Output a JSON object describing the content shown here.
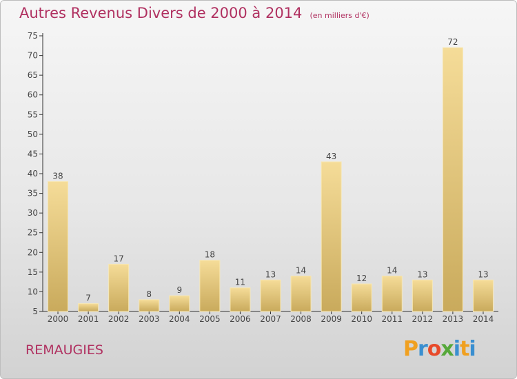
{
  "title": "Autres Revenus Divers de 2000 à 2014",
  "unit_note": "(en milliers d'€)",
  "place_name": "REMAUGIES",
  "logo_text": "Proxiti",
  "colors": {
    "title": "#b03060",
    "bar_light": "#f5dc98",
    "bar_dark": "#c9aa5c",
    "axis": "#333333"
  },
  "chart_data": {
    "type": "bar",
    "title": "Autres Revenus Divers de 2000 à 2014",
    "subtitle": "(en milliers d'€)",
    "categories": [
      "2000",
      "2001",
      "2002",
      "2003",
      "2004",
      "2005",
      "2006",
      "2007",
      "2008",
      "2009",
      "2010",
      "2011",
      "2012",
      "2013",
      "2014"
    ],
    "values": [
      38,
      7,
      17,
      8,
      9,
      18,
      11,
      13,
      14,
      43,
      12,
      14,
      13,
      72,
      13
    ],
    "ylim": [
      5,
      75
    ],
    "yticks": [
      5,
      10,
      15,
      20,
      25,
      30,
      35,
      40,
      45,
      50,
      55,
      60,
      65,
      70,
      75
    ],
    "grid": false,
    "xlabel": "",
    "ylabel": ""
  }
}
